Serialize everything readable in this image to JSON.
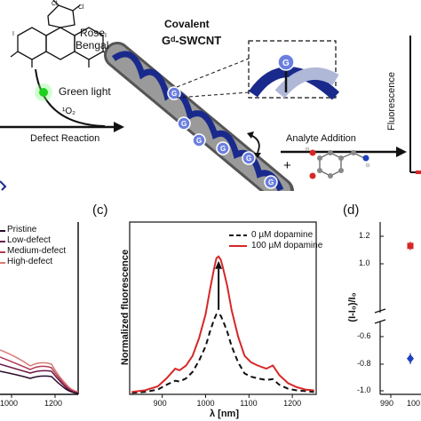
{
  "top": {
    "rose_bengal": [
      "Rose",
      "Bengal"
    ],
    "green_light": "Green light",
    "singlet_oxygen": "¹O₂",
    "defect_reaction": "Defect Reaction",
    "covalent_title": "Covalent",
    "gd_swcnt": "Gᵈ-SWCNT",
    "g_label": "G",
    "analyte_addition": "Analyte Addition",
    "plus": "+",
    "fluorescence_ylabel": "Fluorescence"
  },
  "panel_b": {
    "legend": [
      "Pristine",
      "Low-defect",
      "Medium-defect",
      "High-defect"
    ],
    "colors": [
      "#2a0a2a",
      "#6e1744",
      "#b23a55",
      "#d97a78"
    ],
    "x_ticks": [
      "1000",
      "1200"
    ]
  },
  "panel_c": {
    "label": "(c)",
    "chart_data": {
      "type": "line",
      "xlabel": "λ [nm]",
      "ylabel": "Normalized fluorescence",
      "xlim": [
        825,
        1255
      ],
      "ylim": [
        0,
        2.15
      ],
      "x_ticks": [
        "900",
        "1000",
        "1100",
        "1200"
      ],
      "series": [
        {
          "name": "0 µM dopamine",
          "style": "dashed",
          "color": "#111111",
          "x": [
            830,
            860,
            890,
            910,
            930,
            940,
            955,
            970,
            985,
            1000,
            1010,
            1020,
            1025,
            1030,
            1035,
            1040,
            1050,
            1060,
            1075,
            1090,
            1105,
            1120,
            1140,
            1155,
            1170,
            1190,
            1210,
            1230,
            1250
          ],
          "y": [
            0.02,
            0.03,
            0.06,
            0.12,
            0.17,
            0.16,
            0.2,
            0.28,
            0.42,
            0.6,
            0.78,
            0.94,
            1.0,
            1.01,
            0.98,
            0.92,
            0.78,
            0.6,
            0.4,
            0.26,
            0.22,
            0.2,
            0.18,
            0.19,
            0.12,
            0.07,
            0.05,
            0.04,
            0.03
          ]
        },
        {
          "name": "100 µM dopamine",
          "style": "solid",
          "color": "#d62728",
          "x": [
            830,
            860,
            890,
            910,
            930,
            940,
            955,
            970,
            985,
            1000,
            1010,
            1020,
            1025,
            1030,
            1035,
            1040,
            1050,
            1060,
            1075,
            1090,
            1105,
            1120,
            1140,
            1155,
            1170,
            1190,
            1210,
            1230,
            1250
          ],
          "y": [
            0.03,
            0.05,
            0.1,
            0.2,
            0.32,
            0.3,
            0.36,
            0.48,
            0.7,
            1.0,
            1.3,
            1.58,
            1.7,
            1.72,
            1.68,
            1.58,
            1.35,
            1.05,
            0.72,
            0.48,
            0.4,
            0.36,
            0.32,
            0.36,
            0.24,
            0.14,
            0.09,
            0.06,
            0.05
          ]
        }
      ],
      "annotation": "upward arrow at 1030 nm from 0 µM peak to 100 µM peak"
    }
  },
  "panel_d": {
    "label": "(d)",
    "chart_data": {
      "type": "scatter",
      "ylabel": "(I-I₀)/I₀",
      "y_ticks_upper": [
        "1.2",
        "1.0"
      ],
      "y_ticks_lower": [
        "-0.6",
        "-0.8",
        "-1.0"
      ],
      "x_ticks": [
        "990",
        "100"
      ],
      "points": [
        {
          "y": 1.13,
          "error": 0.03,
          "color": "#d62728",
          "marker": "square"
        },
        {
          "y": -0.76,
          "error": 0.04,
          "color": "#1f3fbf",
          "marker": "diamond"
        }
      ]
    }
  }
}
